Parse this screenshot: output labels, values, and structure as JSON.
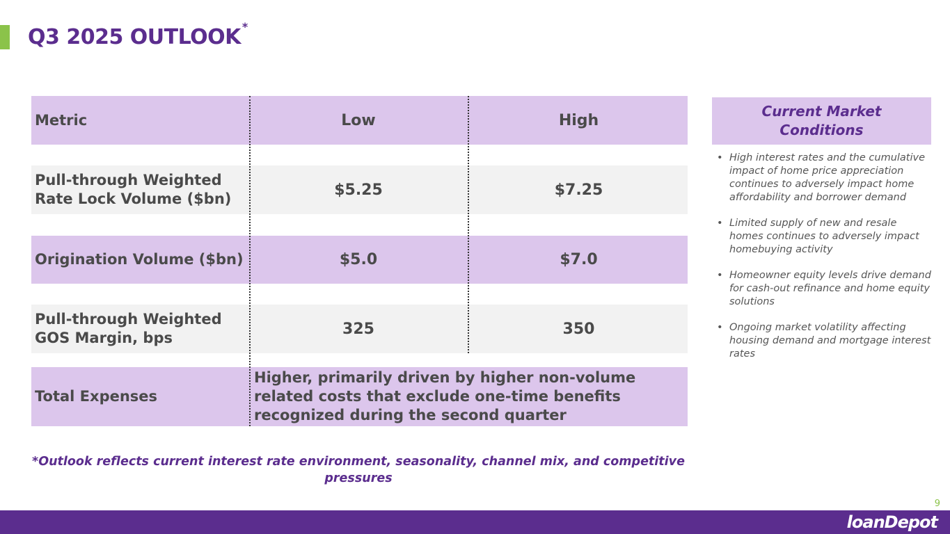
{
  "title": "Q3 2025 OUTLOOK",
  "title_mark": "*",
  "table": {
    "headers": {
      "metric": "Metric",
      "low": "Low",
      "high": "High"
    },
    "rows": [
      {
        "metric": "Pull-through Weighted Rate Lock Volume ($bn)",
        "low": "$5.25",
        "high": "$7.25"
      },
      {
        "metric": "Origination Volume ($bn)",
        "low": "$5.0",
        "high": "$7.0"
      },
      {
        "metric": "Pull-through Weighted GOS Margin, bps",
        "low": "325",
        "high": "350"
      }
    ],
    "expenses": {
      "metric": "Total Expenses",
      "text": "Higher, primarily driven by higher non-volume related costs that exclude one-time benefits recognized during the second quarter"
    }
  },
  "market_conditions": {
    "title": "Current Market Conditions",
    "bullets": [
      "High interest rates and the cumulative impact of home price appreciation continues to adversely impact home affordability and borrower demand",
      "Limited supply of new and resale homes continues to adversely impact homebuying activity",
      "Homeowner equity levels drive demand for cash-out refinance and home equity solutions",
      "Ongoing market volatility affecting housing demand and mortgage interest rates"
    ]
  },
  "footnote": "*Outlook reflects current interest rate environment, seasonality, channel mix, and competitive pressures",
  "page_number": "9",
  "logo": "loanDepot",
  "colors": {
    "brand_purple": "#5b2d8e",
    "light_purple": "#dcc6ec",
    "accent_green": "#8bc34a",
    "row_grey": "#f2f2f2"
  }
}
